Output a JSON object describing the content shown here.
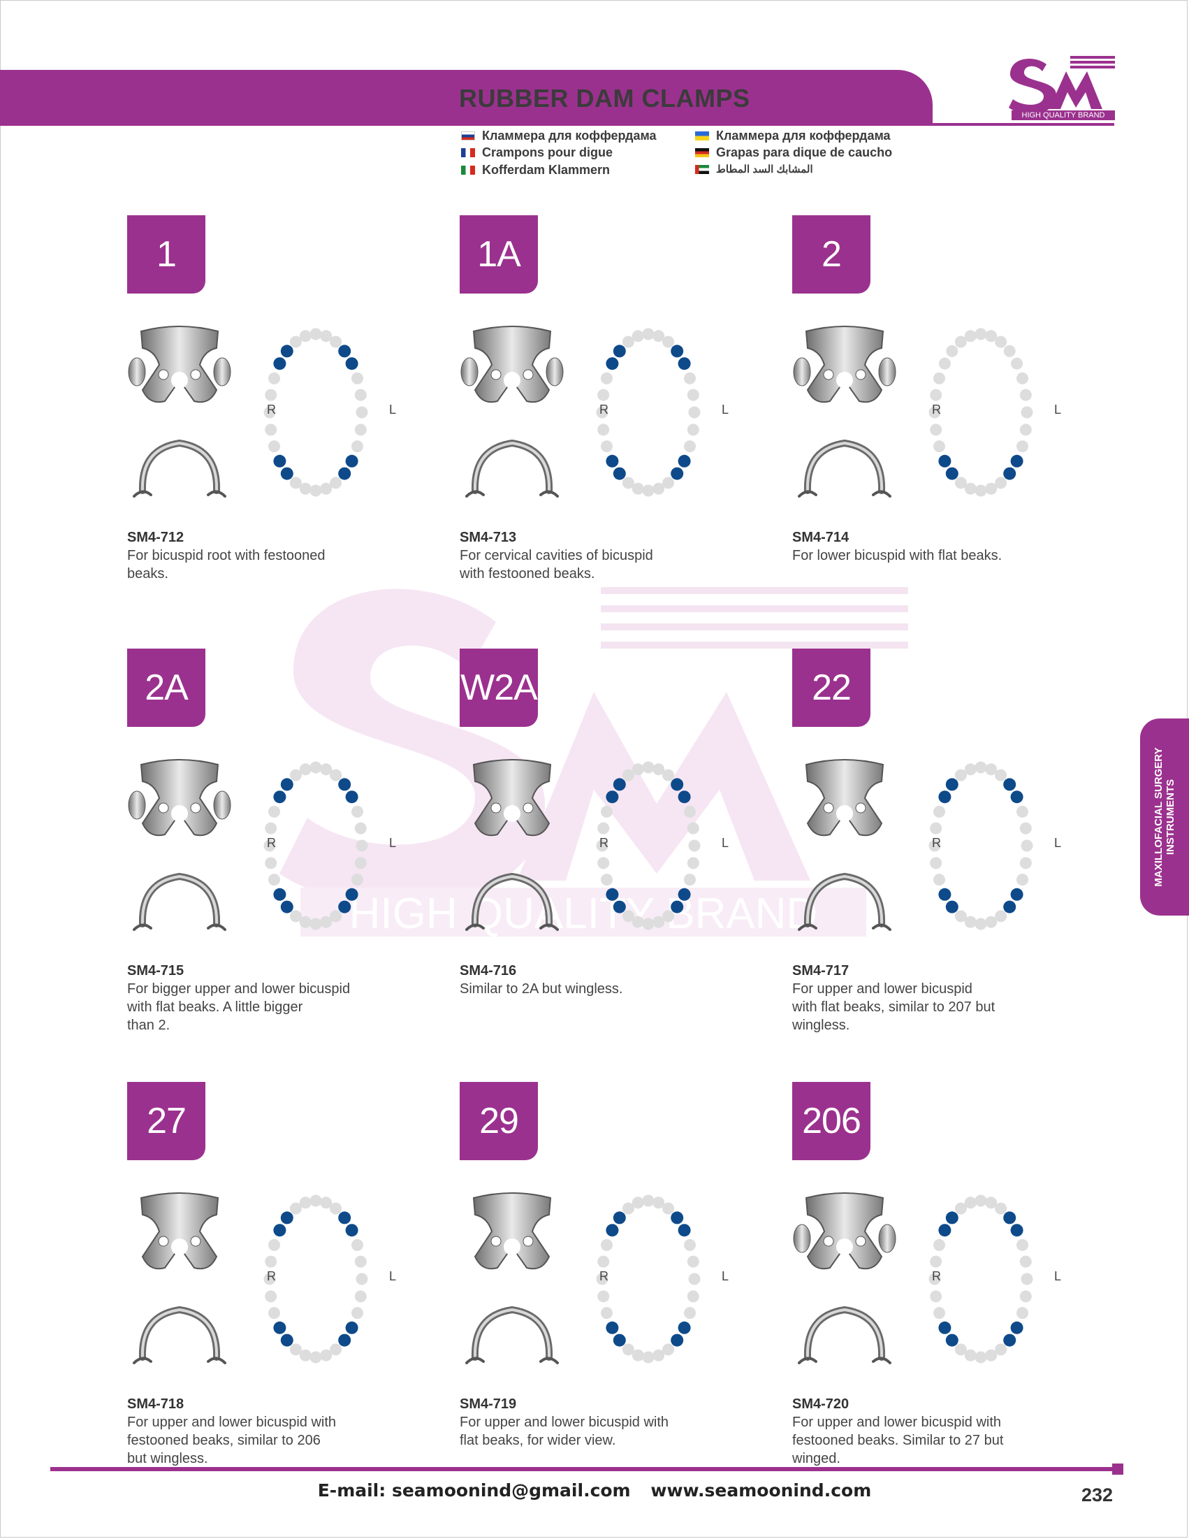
{
  "header": {
    "title": "RUBBER DAM CLAMPS",
    "logo_text": "SM",
    "logo_caption": "HIGH QUALITY BRAND"
  },
  "languages": [
    {
      "flag": "russia",
      "text": "Кламмера для коффердама"
    },
    {
      "flag": "ukraine",
      "text": "Кламмера для коффердама"
    },
    {
      "flag": "france",
      "text": "Crampons pour digue"
    },
    {
      "flag": "germany",
      "text": "Grapas para dique de caucho"
    },
    {
      "flag": "italy",
      "text": "Kofferdam Klammern"
    },
    {
      "flag": "uae",
      "text": "المشابك السد المطاط"
    }
  ],
  "watermark": {
    "text": "HIGH QUALITY BRAND"
  },
  "arch_labels": {
    "right": "R",
    "left": "L"
  },
  "products": [
    {
      "number": "1",
      "code": "SM4-712",
      "description_lines": [
        "For bicuspid root with festooned",
        "beaks."
      ],
      "highlight": [
        "upper-bicuspid",
        "lower-bicuspid"
      ]
    },
    {
      "number": "1A",
      "code": "SM4-713",
      "description_lines": [
        "For cervical cavities of bicuspid",
        "with festooned beaks."
      ],
      "highlight": [
        "upper-bicuspid",
        "lower-bicuspid"
      ]
    },
    {
      "number": "2",
      "code": "SM4-714",
      "description_lines": [
        "For lower bicuspid with flat beaks."
      ],
      "highlight": [
        "lower-bicuspid"
      ]
    },
    {
      "number": "2A",
      "code": "SM4-715",
      "description_lines": [
        "For bigger upper and lower bicuspid",
        "with flat beaks. A little bigger",
        "than 2."
      ],
      "highlight": [
        "upper-bicuspid",
        "lower-bicuspid"
      ]
    },
    {
      "number": "W2A",
      "code": "SM4-716",
      "description_lines": [
        "Similar to 2A but wingless."
      ],
      "highlight": [
        "upper-bicuspid",
        "lower-bicuspid"
      ]
    },
    {
      "number": "22",
      "code": "SM4-717",
      "description_lines": [
        "For upper and lower bicuspid",
        "with flat beaks, similar to 207 but",
        "wingless."
      ],
      "highlight": [
        "upper-bicuspid",
        "lower-bicuspid"
      ]
    },
    {
      "number": "27",
      "code": "SM4-718",
      "description_lines": [
        "For upper and lower bicuspid with",
        "festooned beaks, similar to 206",
        "but wingless."
      ],
      "highlight": [
        "upper-bicuspid",
        "lower-bicuspid"
      ]
    },
    {
      "number": "29",
      "code": "SM4-719",
      "description_lines": [
        "For upper and lower bicuspid with",
        "flat beaks, for wider view."
      ],
      "highlight": [
        "upper-bicuspid",
        "lower-bicuspid"
      ]
    },
    {
      "number": "206",
      "code": "SM4-720",
      "description_lines": [
        "For upper and lower bicuspid with",
        "festooned beaks. Similar to 27 but",
        "winged."
      ],
      "highlight": [
        "upper-bicuspid",
        "lower-bicuspid"
      ]
    }
  ],
  "side_tab": {
    "line1": "MAXILLOFACIAL SURGERY",
    "line2": "INSTRUMENTS"
  },
  "footer": {
    "email": "E-mail: seamoonind@gmail.com",
    "website": "www.seamoonind.com",
    "page_number": "232"
  },
  "colors": {
    "brand": "#9b318e",
    "tooth": "#dddddd",
    "highlight_tooth": "#0e4a8a"
  }
}
